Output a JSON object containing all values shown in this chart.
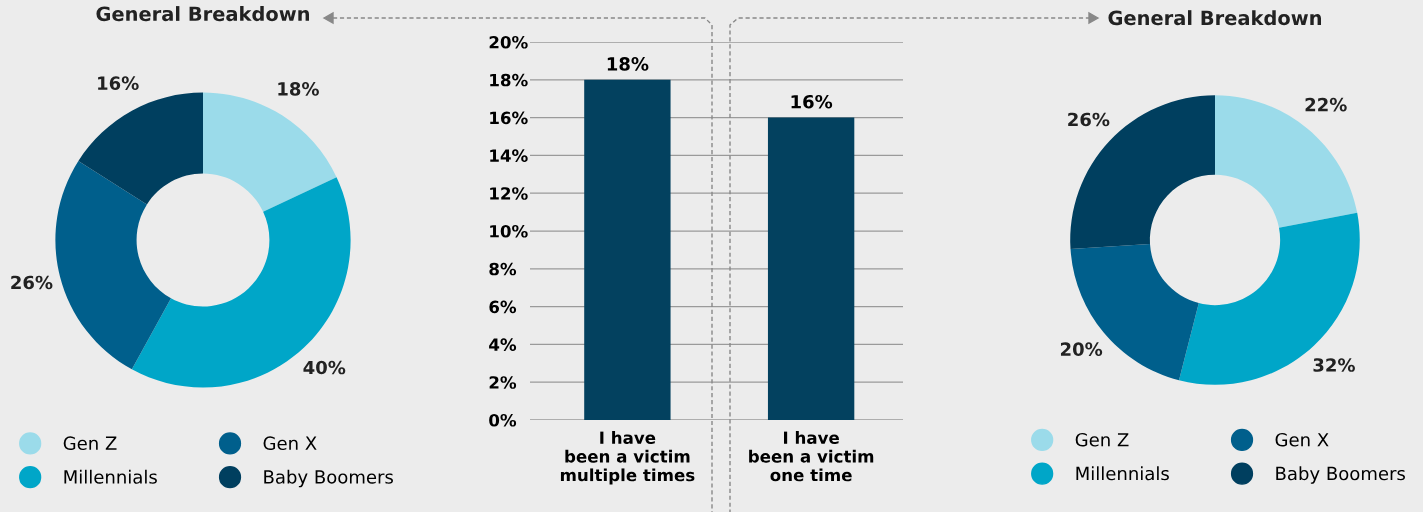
{
  "chart_data": [
    {
      "type": "donut",
      "title": "General Breakdown",
      "categories": [
        "Gen Z",
        "Millennials",
        "Gen X",
        "Baby Boomers"
      ],
      "values": [
        18,
        40,
        26,
        16
      ],
      "colors": [
        "#9bdbea",
        "#00a6c8",
        "#005f8c",
        "#003f5f"
      ],
      "value_labels": [
        "18%",
        "40%",
        "26%",
        "16%"
      ],
      "legend": "bottom"
    },
    {
      "type": "bar",
      "categories": [
        "I have\nbeen a victim\nmultiple times",
        "I have\nbeen a victim\none time"
      ],
      "values": [
        18,
        16
      ],
      "color": "#03415f",
      "value_labels": [
        "18%",
        "16%"
      ],
      "ylim": [
        0,
        20
      ],
      "yticks": [
        {
          "value": 0,
          "label": "0%"
        },
        {
          "value": 2,
          "label": "2%"
        },
        {
          "value": 4,
          "label": "4%"
        },
        {
          "value": 6,
          "label": "6%"
        },
        {
          "value": 8,
          "label": "8%"
        },
        {
          "value": 10,
          "label": "10%"
        },
        {
          "value": 12,
          "label": "12%"
        },
        {
          "value": 14,
          "label": "14%"
        },
        {
          "value": 16,
          "label": "16%"
        },
        {
          "value": 18,
          "label": "18%"
        },
        {
          "value": 20,
          "label": "20%"
        }
      ],
      "grid": "y"
    },
    {
      "type": "donut",
      "title": "General Breakdown",
      "categories": [
        "Gen Z",
        "Millennials",
        "Gen X",
        "Baby Boomers"
      ],
      "values": [
        22,
        32,
        20,
        26
      ],
      "colors": [
        "#9bdbea",
        "#00a6c8",
        "#005f8c",
        "#003f5f"
      ],
      "value_labels": [
        "22%",
        "32%",
        "20%",
        "26%"
      ],
      "legend": "bottom"
    }
  ]
}
